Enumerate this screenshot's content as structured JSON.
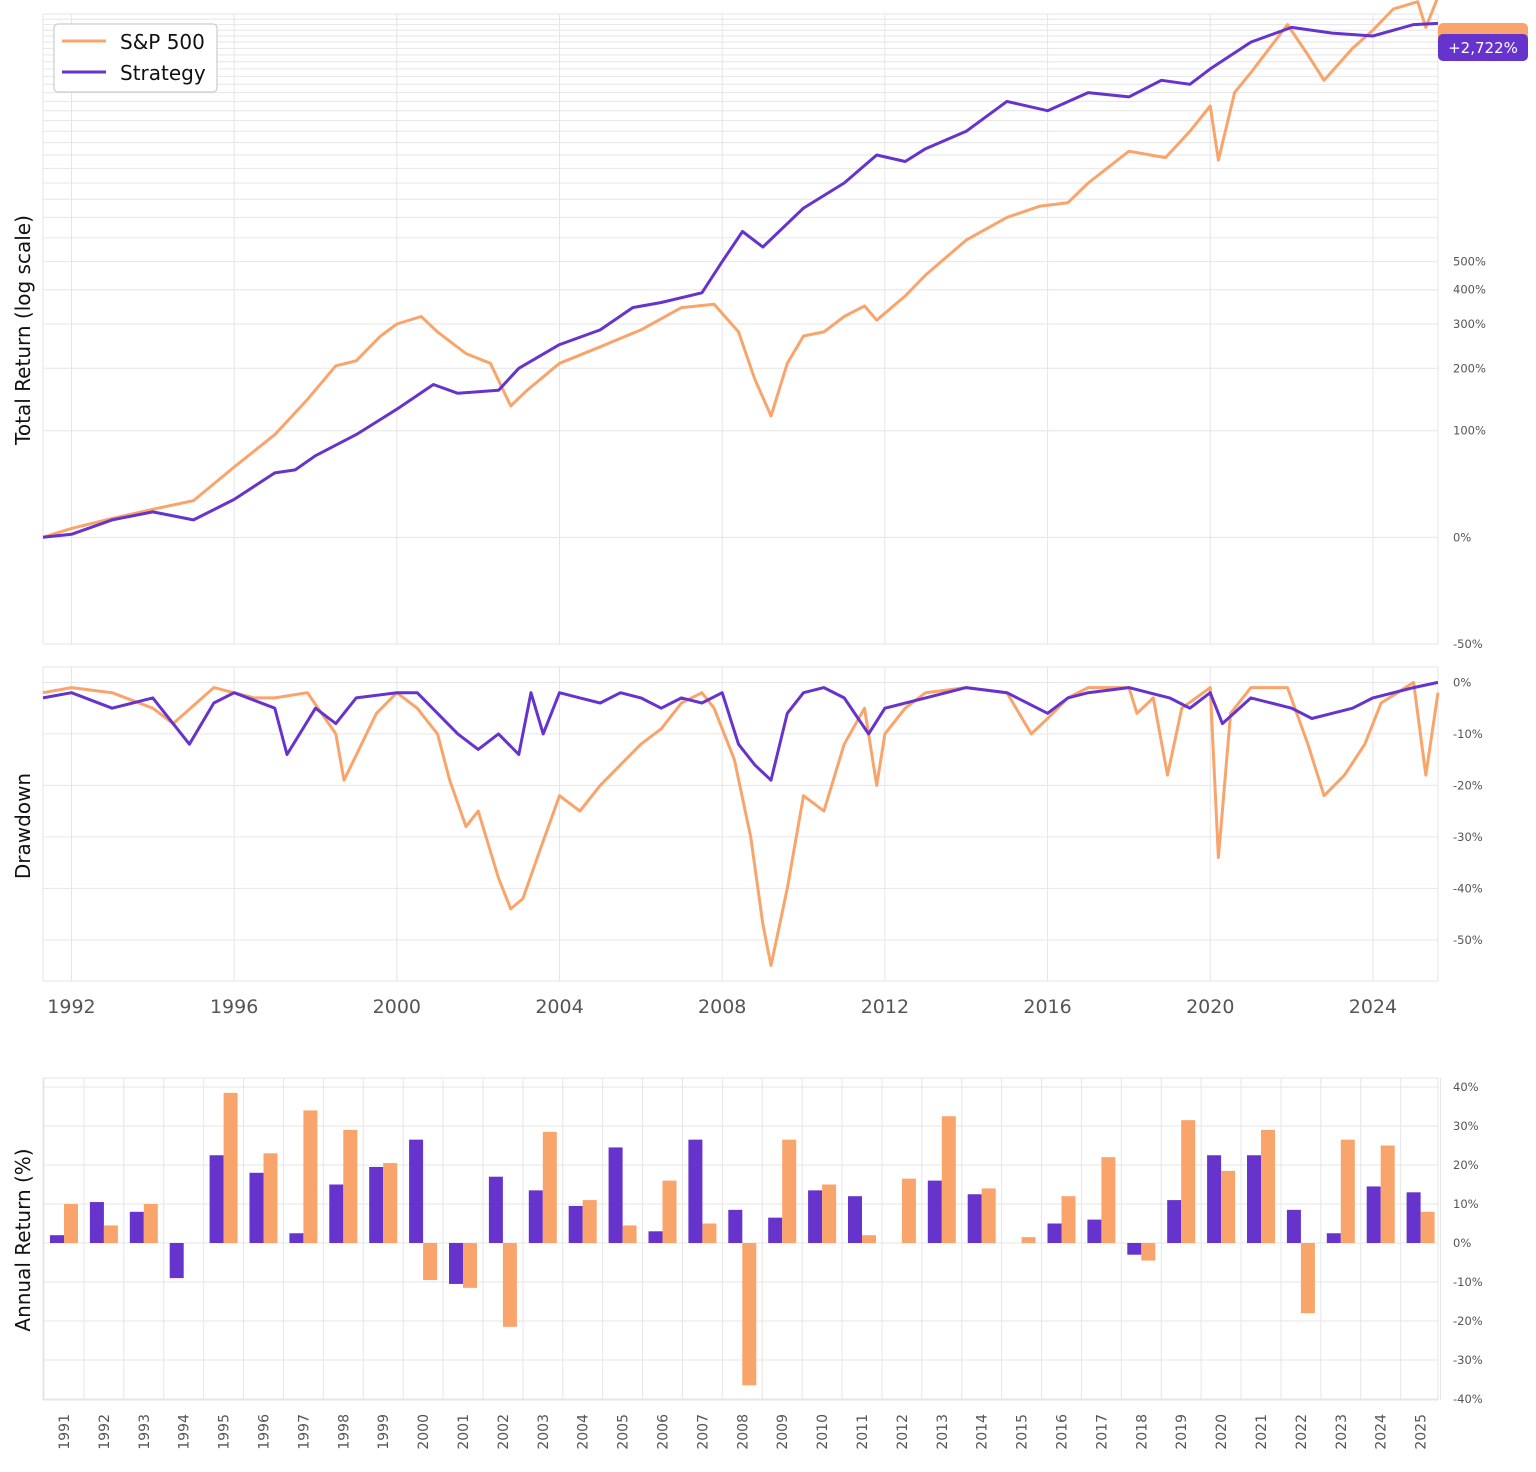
{
  "chart_data": [
    {
      "type": "line",
      "ylabel": "Total Return (log scale)",
      "yscale": "log",
      "yticks": [
        "-50%",
        "0%",
        "100%",
        "200%",
        "300%",
        "400%",
        "500%"
      ],
      "ylim_pct": [
        -50,
        2900
      ],
      "xlim": [
        1991.3,
        2025.6
      ],
      "legend": {
        "placement": "top-left",
        "entries": [
          "S&P 500",
          "Strategy"
        ]
      },
      "end_label": "+2,722%",
      "grid": true,
      "series": [
        {
          "name": "S&P 500",
          "color": "#f9a46b",
          "x": [
            1991.3,
            1992.0,
            1993.0,
            1994.0,
            1995.0,
            1996.0,
            1997.0,
            1997.8,
            1998.5,
            1999.0,
            1999.6,
            2000.0,
            2000.6,
            2001.0,
            2001.7,
            2002.3,
            2002.8,
            2003.2,
            2004.0,
            2005.0,
            2006.0,
            2007.0,
            2007.8,
            2008.4,
            2008.8,
            2009.2,
            2009.6,
            2010.0,
            2010.5,
            2011.0,
            2011.5,
            2011.8,
            2012.5,
            2013.0,
            2014.0,
            2015.0,
            2015.8,
            2016.5,
            2017.0,
            2018.0,
            2018.9,
            2019.5,
            2020.0,
            2020.2,
            2020.6,
            2021.0,
            2021.9,
            2022.4,
            2022.8,
            2023.5,
            2024.0,
            2024.5,
            2025.1,
            2025.3,
            2025.6
          ],
          "y": [
            0,
            6,
            13,
            20,
            27,
            58,
            95,
            145,
            205,
            215,
            270,
            300,
            320,
            280,
            230,
            210,
            135,
            160,
            210,
            245,
            285,
            345,
            355,
            280,
            180,
            120,
            210,
            270,
            280,
            320,
            350,
            310,
            380,
            450,
            590,
            700,
            760,
            780,
            900,
            1130,
            1080,
            1300,
            1550,
            1060,
            1700,
            1950,
            2700,
            2200,
            1850,
            2300,
            2600,
            3000,
            3150,
            2650,
            3250
          ]
        },
        {
          "name": "Strategy",
          "color": "#6633cc",
          "x": [
            1991.3,
            1992.0,
            1993.0,
            1994.0,
            1995.0,
            1996.0,
            1997.0,
            1997.5,
            1998.0,
            1999.0,
            2000.0,
            2000.9,
            2001.5,
            2002.5,
            2003.0,
            2004.0,
            2005.0,
            2005.8,
            2006.5,
            2007.5,
            2008.0,
            2008.5,
            2009.0,
            2010.0,
            2011.0,
            2011.8,
            2012.5,
            2013.0,
            2014.0,
            2015.0,
            2016.0,
            2017.0,
            2018.0,
            2018.8,
            2019.5,
            2020.0,
            2021.0,
            2022.0,
            2023.0,
            2024.0,
            2025.0,
            2025.6
          ],
          "y": [
            0,
            2,
            12,
            18,
            12,
            28,
            52,
            55,
            70,
            95,
            130,
            170,
            155,
            160,
            200,
            250,
            285,
            345,
            360,
            390,
            500,
            630,
            560,
            750,
            900,
            1100,
            1050,
            1150,
            1300,
            1600,
            1500,
            1700,
            1650,
            1850,
            1800,
            2000,
            2400,
            2650,
            2550,
            2500,
            2700,
            2722
          ]
        }
      ]
    },
    {
      "type": "line",
      "ylabel": "Drawdown",
      "yticks": [
        "0%",
        "-10%",
        "-20%",
        "-30%",
        "-40%",
        "-50%"
      ],
      "ylim": [
        -58,
        3
      ],
      "xlim": [
        1991.3,
        2025.6
      ],
      "xticks": [
        "1992",
        "1996",
        "2000",
        "2004",
        "2008",
        "2012",
        "2016",
        "2020",
        "2024"
      ],
      "grid": true,
      "series": [
        {
          "name": "S&P 500",
          "color": "#f9a46b",
          "x": [
            1991.3,
            1992.0,
            1993.0,
            1994.0,
            1994.5,
            1995.5,
            1996.5,
            1997.0,
            1997.8,
            1998.5,
            1998.7,
            1999.5,
            2000.0,
            2000.5,
            2001.0,
            2001.3,
            2001.7,
            2002.0,
            2002.5,
            2002.8,
            2003.1,
            2003.5,
            2004.0,
            2004.5,
            2005.0,
            2005.5,
            2006.0,
            2006.5,
            2007.0,
            2007.5,
            2007.8,
            2008.3,
            2008.7,
            2009.0,
            2009.2,
            2009.6,
            2010.0,
            2010.5,
            2011.0,
            2011.5,
            2011.8,
            2012.0,
            2012.5,
            2013.0,
            2014.0,
            2015.0,
            2015.6,
            2016.0,
            2016.5,
            2017.0,
            2018.0,
            2018.2,
            2018.6,
            2018.95,
            2019.3,
            2020.0,
            2020.2,
            2020.5,
            2021.0,
            2021.9,
            2022.4,
            2022.8,
            2023.3,
            2023.8,
            2024.2,
            2025.0,
            2025.3,
            2025.6
          ],
          "y": [
            -2,
            -1,
            -2,
            -5,
            -8,
            -1,
            -3,
            -3,
            -2,
            -10,
            -19,
            -6,
            -2,
            -5,
            -10,
            -19,
            -28,
            -25,
            -38,
            -44,
            -42,
            -33,
            -22,
            -25,
            -20,
            -16,
            -12,
            -9,
            -4,
            -2,
            -5,
            -15,
            -30,
            -47,
            -55,
            -40,
            -22,
            -25,
            -12,
            -5,
            -20,
            -10,
            -5,
            -2,
            -1,
            -2,
            -10,
            -7,
            -3,
            -1,
            -1,
            -6,
            -3,
            -18,
            -5,
            -1,
            -34,
            -6,
            -1,
            -1,
            -12,
            -22,
            -18,
            -12,
            -4,
            0,
            -18,
            -2
          ]
        },
        {
          "name": "Strategy",
          "color": "#6633cc",
          "x": [
            1991.3,
            1992.0,
            1993.0,
            1994.0,
            1994.9,
            1995.5,
            1996.0,
            1997.0,
            1997.3,
            1998.0,
            1998.5,
            1999.0,
            2000.0,
            2000.5,
            2001.0,
            2001.5,
            2002.0,
            2002.5,
            2003.0,
            2003.3,
            2003.6,
            2004.0,
            2004.5,
            2005.0,
            2005.5,
            2006.0,
            2006.5,
            2007.0,
            2007.5,
            2008.0,
            2008.4,
            2008.8,
            2009.2,
            2009.6,
            2010.0,
            2010.5,
            2011.0,
            2011.6,
            2012.0,
            2013.0,
            2014.0,
            2015.0,
            2016.0,
            2016.5,
            2017.0,
            2018.0,
            2019.0,
            2019.5,
            2020.0,
            2020.3,
            2021.0,
            2022.0,
            2022.5,
            2023.0,
            2023.5,
            2024.0,
            2025.0,
            2025.6
          ],
          "y": [
            -3,
            -2,
            -5,
            -3,
            -12,
            -4,
            -2,
            -5,
            -14,
            -5,
            -8,
            -3,
            -2,
            -2,
            -6,
            -10,
            -13,
            -10,
            -14,
            -2,
            -10,
            -2,
            -3,
            -4,
            -2,
            -3,
            -5,
            -3,
            -4,
            -2,
            -12,
            -16,
            -19,
            -6,
            -2,
            -1,
            -3,
            -10,
            -5,
            -3,
            -1,
            -2,
            -6,
            -3,
            -2,
            -1,
            -3,
            -5,
            -2,
            -8,
            -3,
            -5,
            -7,
            -6,
            -5,
            -3,
            -1,
            0
          ]
        }
      ]
    },
    {
      "type": "bar",
      "ylabel": "Annual Return (%)",
      "yticks": [
        "40%",
        "30%",
        "20%",
        "10%",
        "0%",
        "-10%",
        "-20%",
        "-30%",
        "-40%"
      ],
      "ylim": [
        -40,
        40
      ],
      "categories": [
        "1991",
        "1992",
        "1993",
        "1994",
        "1995",
        "1996",
        "1997",
        "1998",
        "1999",
        "2000",
        "2001",
        "2002",
        "2003",
        "2004",
        "2005",
        "2006",
        "2007",
        "2008",
        "2009",
        "2010",
        "2011",
        "2012",
        "2013",
        "2014",
        "2015",
        "2016",
        "2017",
        "2018",
        "2019",
        "2020",
        "2021",
        "2022",
        "2023",
        "2024",
        "2025"
      ],
      "grid": true,
      "series": [
        {
          "name": "Strategy",
          "color": "#6633cc",
          "values": [
            2,
            10.5,
            8,
            -9,
            22.5,
            18,
            2.5,
            15,
            19.5,
            26.5,
            -10.5,
            17,
            13.5,
            9.5,
            24.5,
            3,
            26.5,
            8.5,
            6.5,
            13.5,
            12,
            0,
            16,
            12.5,
            0,
            5,
            6,
            -3,
            11,
            22.5,
            22.5,
            8.5,
            2.5,
            14.5,
            13
          ]
        },
        {
          "name": "S&P 500",
          "color": "#f9a46b",
          "values": [
            10,
            4.5,
            10,
            0,
            38.5,
            23,
            34,
            29,
            20.5,
            -9.5,
            -11.5,
            -21.5,
            28.5,
            11,
            4.5,
            16,
            5,
            -36.5,
            26.5,
            15,
            2,
            16.5,
            32.5,
            14,
            1.5,
            12,
            22,
            -4.5,
            31.5,
            18.5,
            29,
            -18,
            26.5,
            25,
            8
          ]
        }
      ]
    }
  ]
}
